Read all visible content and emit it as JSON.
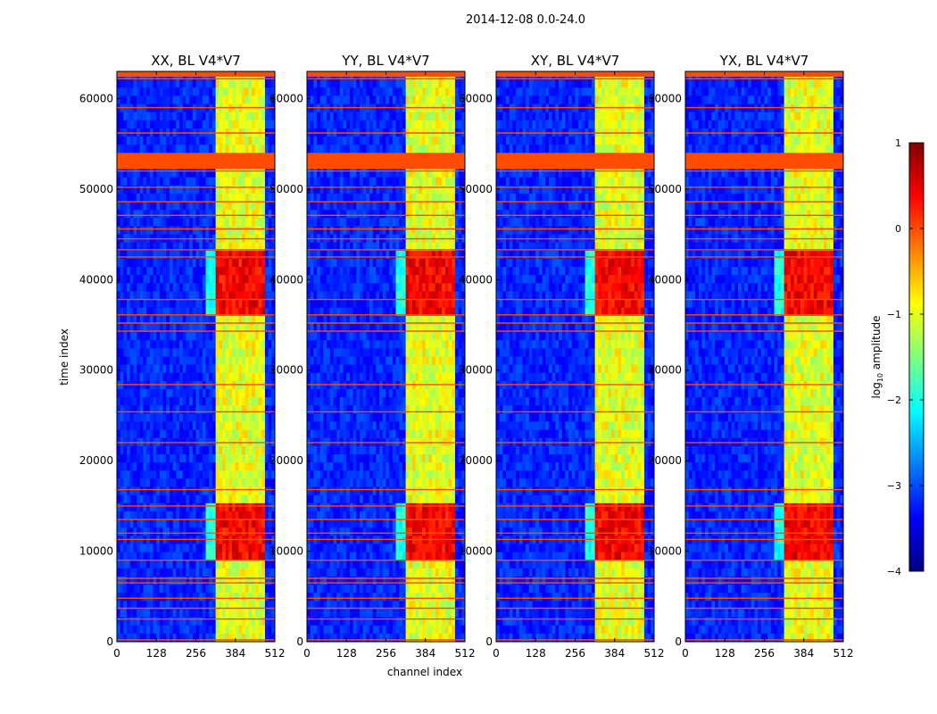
{
  "chart_data": {
    "type": "heatmap",
    "suptitle": "2014-12-08 0.0-24.0",
    "xlabel": "channel index",
    "ylabel": "time index",
    "xlim": [
      0,
      512
    ],
    "ylim": [
      0,
      63000
    ],
    "xticks": [
      "0",
      "128",
      "256",
      "384",
      "512"
    ],
    "xtick_values": [
      0,
      128,
      256,
      384,
      512
    ],
    "yticks": [
      "0",
      "10000",
      "20000",
      "30000",
      "40000",
      "50000",
      "60000"
    ],
    "ytick_values": [
      0,
      10000,
      20000,
      30000,
      40000,
      50000,
      60000
    ],
    "colorbar": {
      "label": "log10 amplitude",
      "label_main": "log",
      "label_sub": "10",
      "label_rest": " amplitude",
      "range": [
        -4,
        1
      ],
      "ticks": [
        "1",
        "0",
        "−1",
        "−2",
        "−3",
        "−4"
      ],
      "tick_values": [
        1,
        0,
        -1,
        -2,
        -3,
        -4
      ],
      "colormap": [
        "#00007f",
        "#0000ff",
        "#007fff",
        "#00ffff",
        "#7fff7f",
        "#ffff00",
        "#ff7f00",
        "#ff0000",
        "#7f0000"
      ]
    },
    "panels": [
      {
        "title": "XX, BL V4*V7",
        "polarization": "XX"
      },
      {
        "title": "YY, BL V4*V7",
        "polarization": "YY"
      },
      {
        "title": "XY, BL V4*V7",
        "polarization": "XY"
      },
      {
        "title": "YX, BL V4*V7",
        "polarization": "YX"
      }
    ],
    "features": {
      "band_channel_range": [
        325,
        480
      ],
      "band_level": -1.0,
      "background_level": -3.2,
      "strong_time_ranges": [
        [
          9000,
          15000
        ],
        [
          36000,
          43000
        ]
      ],
      "strong_level": 0.4,
      "flagged_rows": [
        200,
        2500,
        3700,
        4800,
        6500,
        7000,
        9000,
        11300,
        12000,
        13500,
        15000,
        16800,
        22000,
        25400,
        28400,
        34300,
        35200,
        36100,
        37800,
        42500,
        43300,
        44500,
        45600,
        47100,
        48600,
        50200,
        52000,
        56200,
        59000,
        62200
      ],
      "flagged_block": [
        53000,
        54000
      ],
      "flag_level": 0.0
    }
  }
}
